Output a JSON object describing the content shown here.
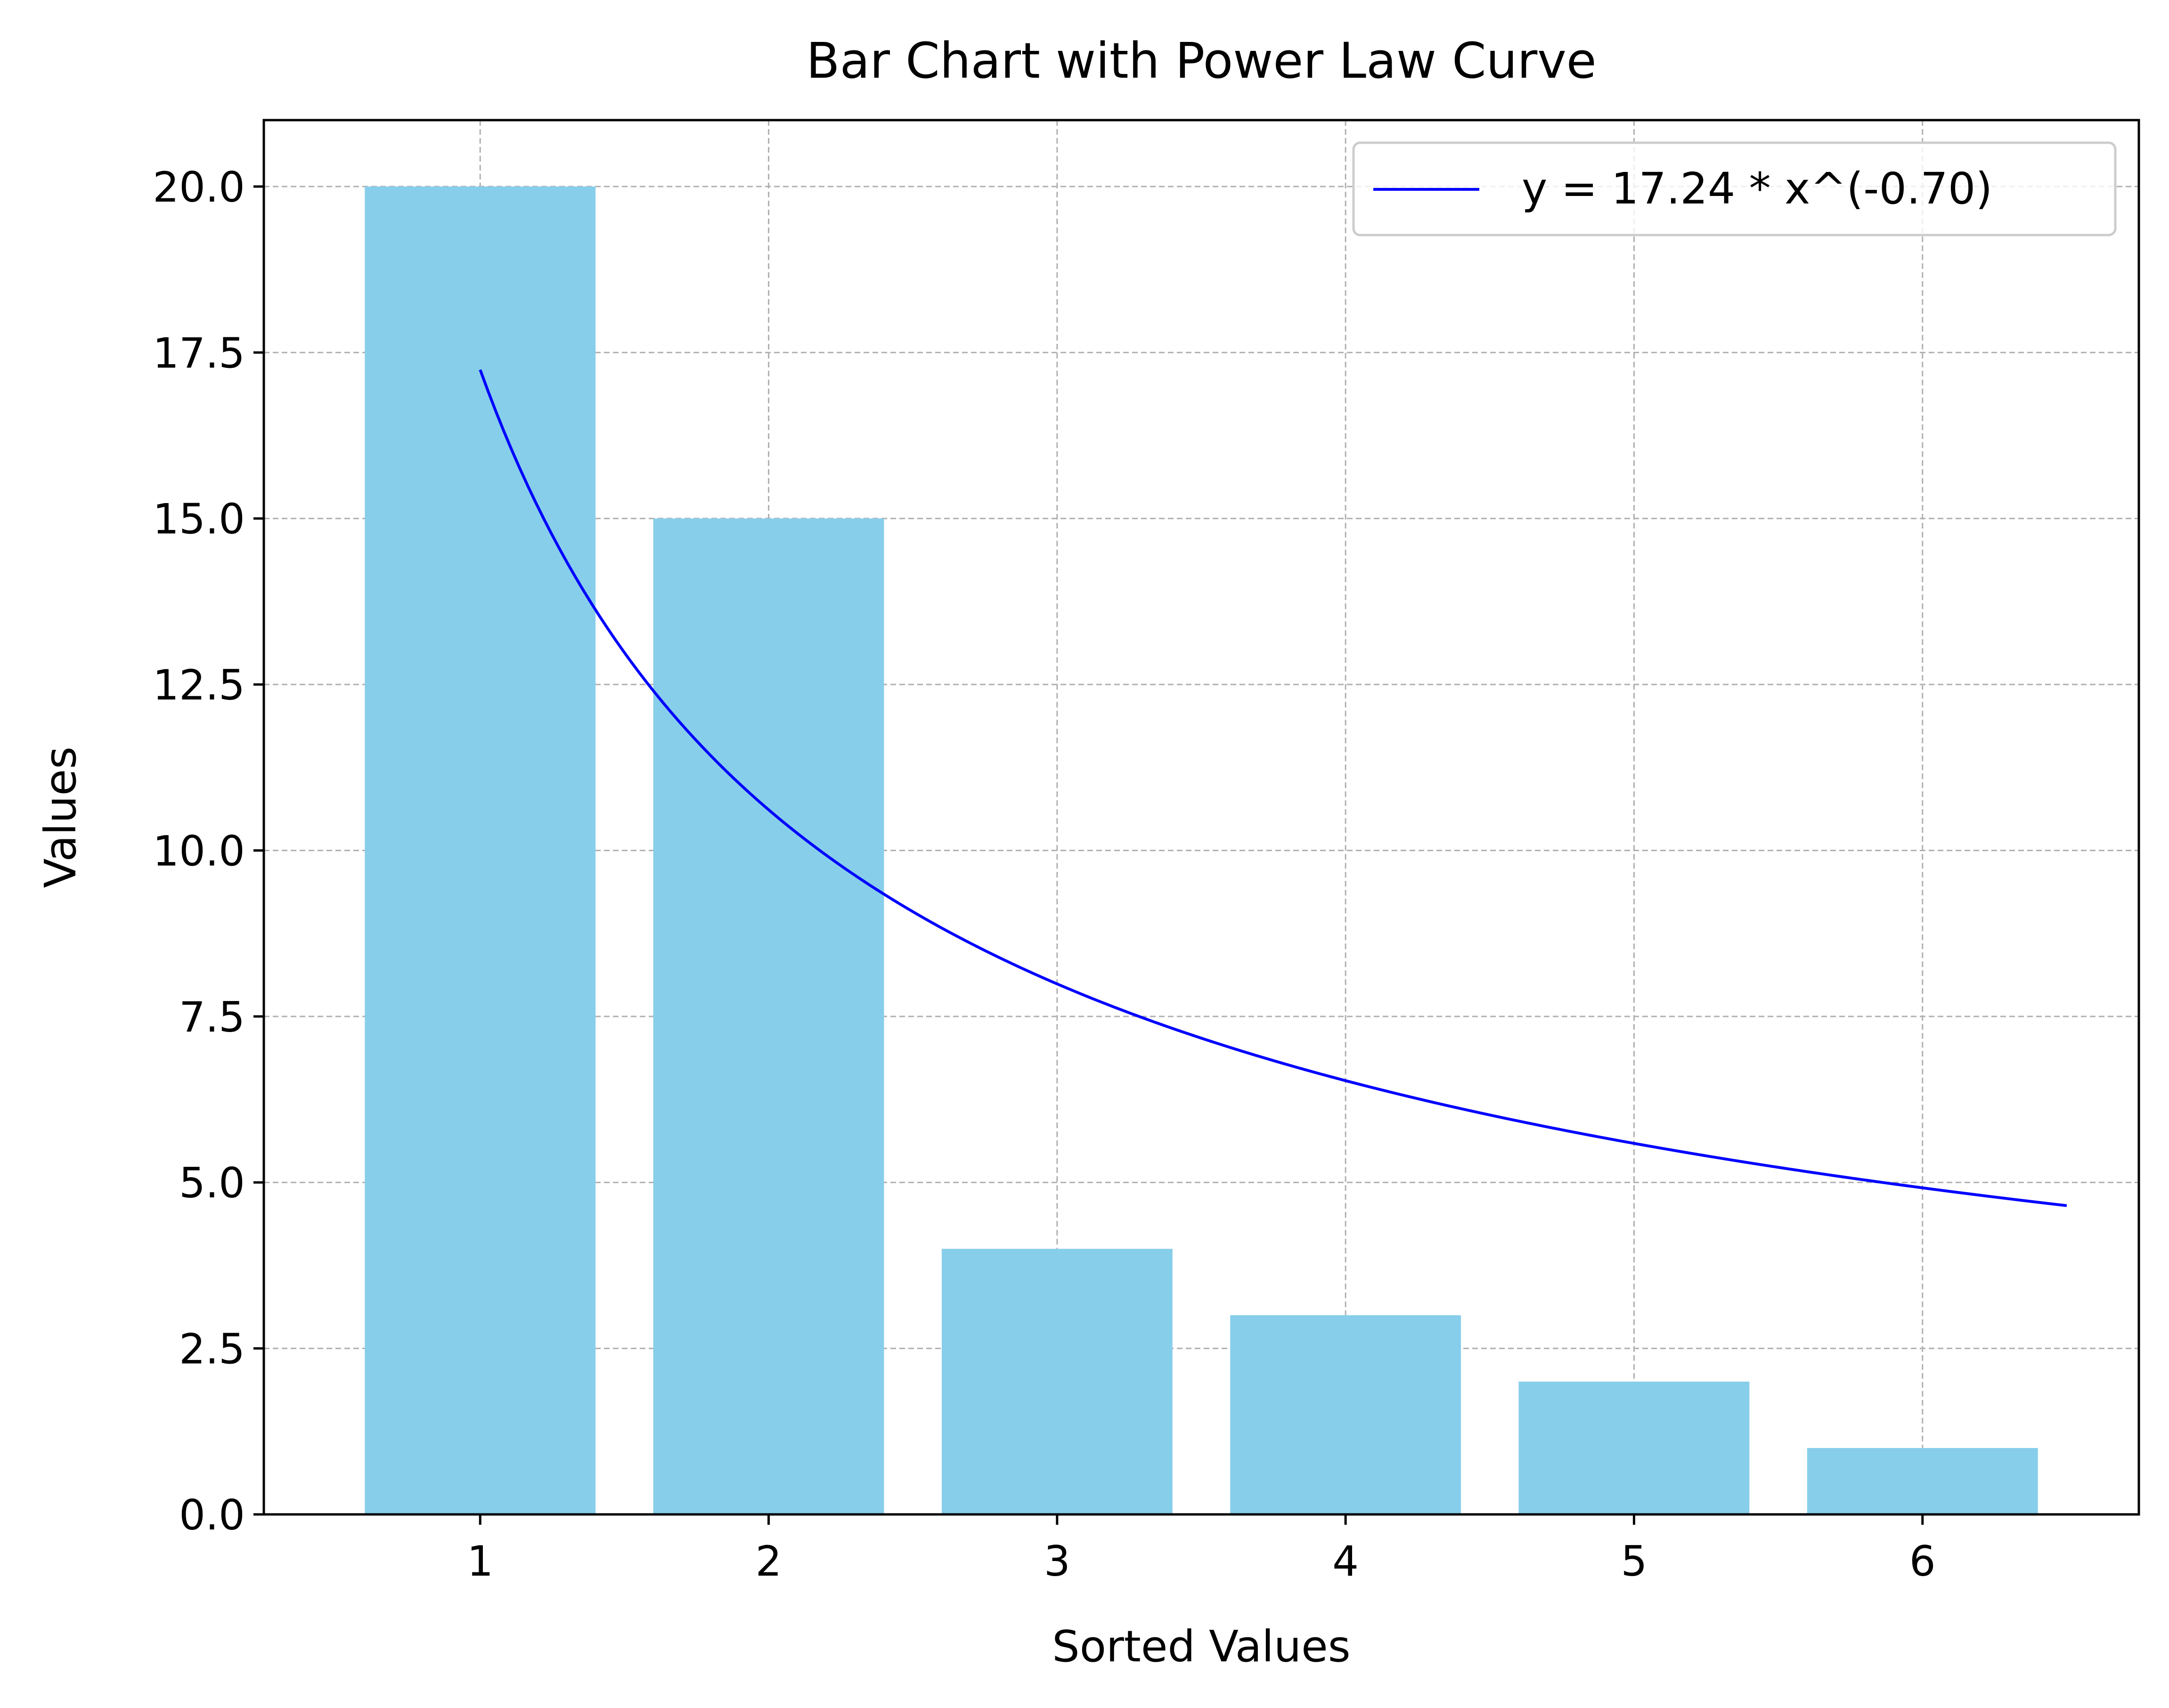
{
  "chart_data": {
    "type": "bar",
    "title": "Bar Chart with Power Law Curve",
    "xlabel": "Sorted Values",
    "ylabel": "Values",
    "categories": [
      1,
      2,
      3,
      4,
      5,
      6
    ],
    "values": [
      20,
      15,
      4,
      3,
      2,
      1
    ],
    "x_tick_labels": [
      "1",
      "2",
      "3",
      "4",
      "5",
      "6"
    ],
    "xlim": [
      0.25,
      6.75
    ],
    "ylim": [
      0,
      21
    ],
    "y_ticks": [
      0,
      2.5,
      5,
      7.5,
      10,
      12.5,
      15,
      17.5,
      20
    ],
    "y_tick_labels": [
      "0.0",
      "2.5",
      "5.0",
      "7.5",
      "10.0",
      "12.5",
      "15.0",
      "17.5",
      "20.0"
    ],
    "bar_color": "#87ceeb",
    "grid": true,
    "legend_position": "top-right",
    "curve": {
      "name": "y = 17.24 * x^(-0.70)",
      "a": 17.24,
      "b": -0.7,
      "x_range": [
        1,
        6.5
      ],
      "color": "#0000ff"
    }
  }
}
